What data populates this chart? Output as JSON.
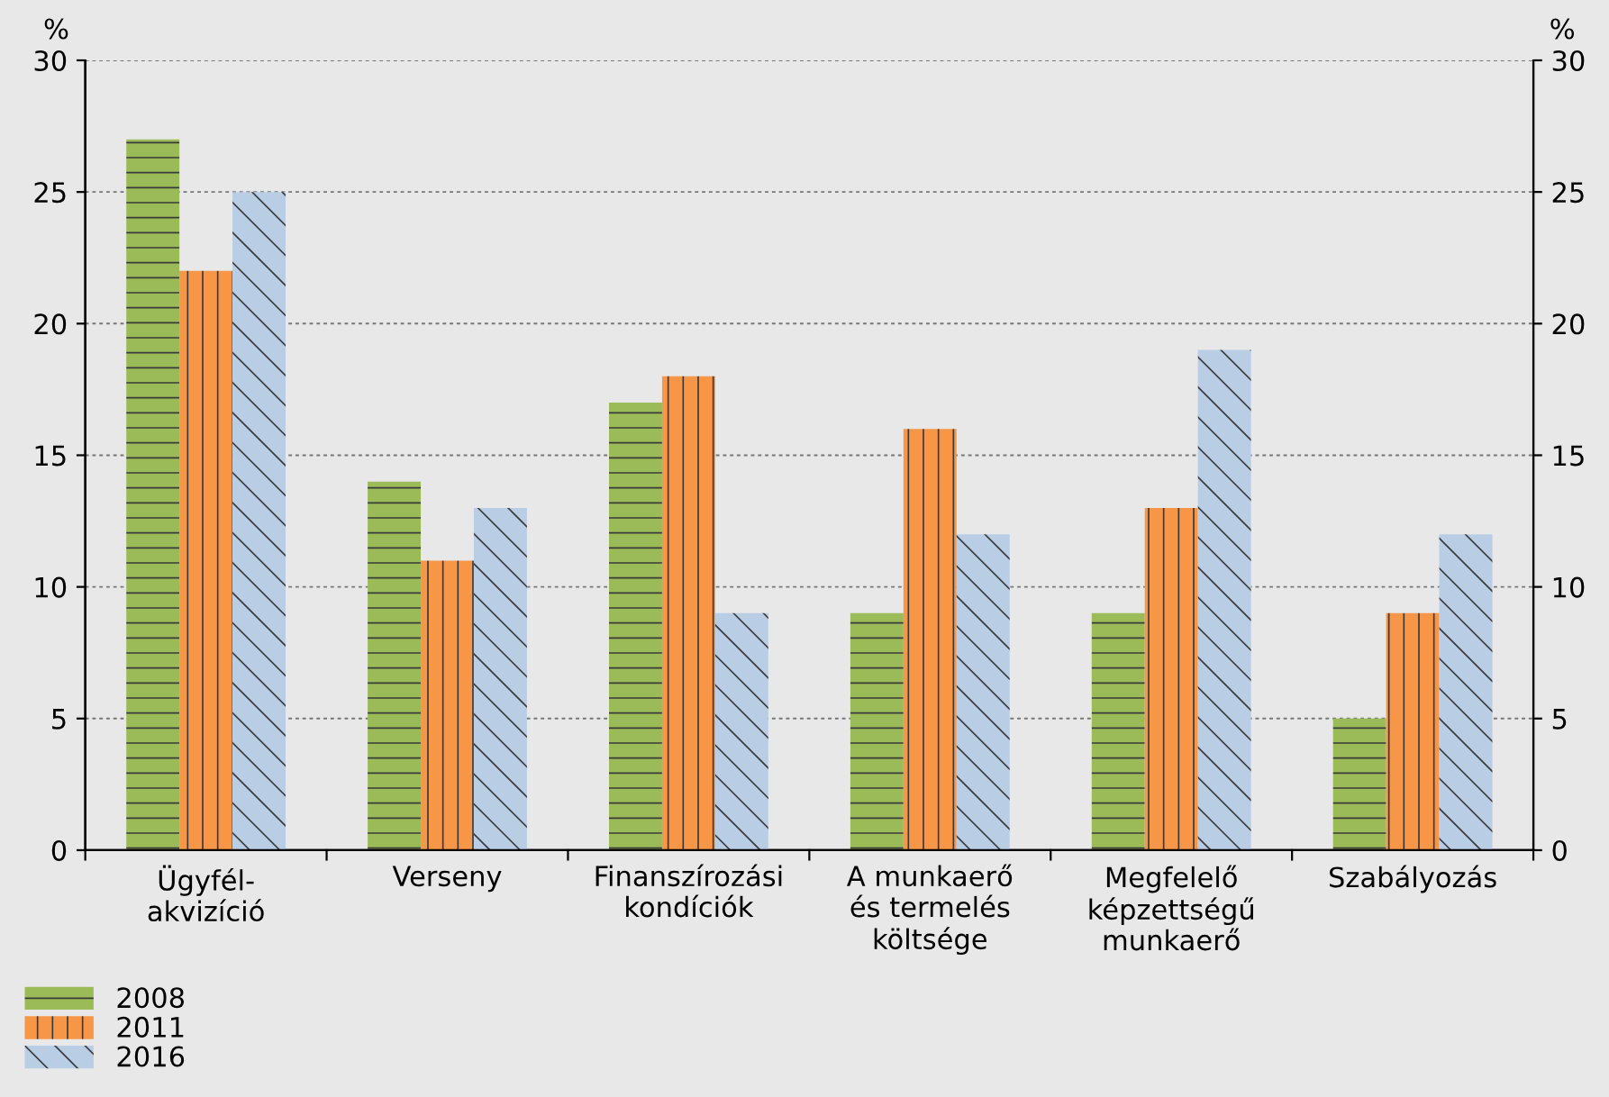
{
  "chart_data": {
    "type": "bar",
    "categories": [
      "Ügyfél-\nakvizíció",
      "Verseny",
      "Finanszírozási\nkondíciók",
      "A munkaerő\nés termelés\nköltsége",
      "Megfelelő\nképzettségű\nmunkaerő",
      "Szabályozás"
    ],
    "series": [
      {
        "name": "2008",
        "color": "#9bbb59",
        "values": [
          27,
          14,
          17,
          9,
          9,
          5
        ]
      },
      {
        "name": "2011",
        "color": "#f79646",
        "values": [
          22,
          11,
          18,
          16,
          13,
          9
        ]
      },
      {
        "name": "2016",
        "color": "#b9cde5",
        "values": [
          25,
          13,
          9,
          12,
          19,
          12
        ]
      }
    ],
    "ylabel": "%",
    "y2label": "%",
    "ylim": [
      0,
      30
    ],
    "yticks": [
      0,
      5,
      10,
      15,
      20,
      25,
      30
    ],
    "y2lim": [
      0,
      30
    ],
    "y2ticks": [
      0,
      5,
      10,
      15,
      20,
      25,
      30
    ],
    "grid": "y",
    "legend": "bottom left"
  }
}
